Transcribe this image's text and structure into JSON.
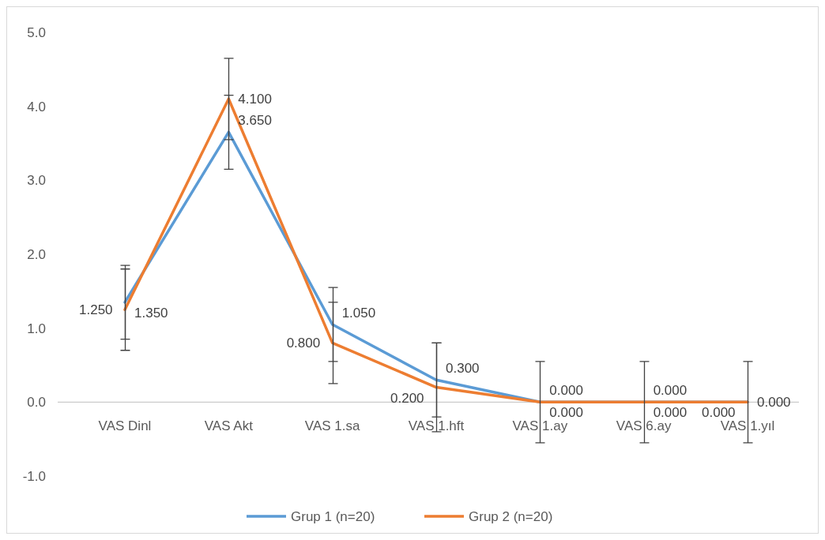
{
  "chart_data": {
    "type": "line",
    "categories": [
      "VAS Dinl",
      "VAS Akt",
      "VAS 1.sa",
      "VAS 1.hft",
      "VAS 1.ay",
      "VAS 6.ay",
      "VAS 1.yıl"
    ],
    "series": [
      {
        "name": "Grup 1 (n=20)",
        "color": "#5b9bd5",
        "values": [
          1.35,
          3.65,
          1.05,
          0.3,
          0,
          0,
          0
        ],
        "errors": [
          0.5,
          0.5,
          0.5,
          0.5,
          0.55,
          0.55,
          0.55
        ],
        "value_labels": [
          "1.350",
          "3.650",
          "1.050",
          "0.300",
          "0.000",
          "0.000",
          "0.000"
        ]
      },
      {
        "name": "Grup 2 (n=20)",
        "color": "#ed7d31",
        "values": [
          1.25,
          4.1,
          0.8,
          0.2,
          0,
          0,
          0
        ],
        "errors": [
          0.55,
          0.55,
          0.55,
          0.6,
          0.55,
          0.55,
          0.55
        ],
        "value_labels": [
          "1.250",
          "4.100",
          "0.800",
          "0.200",
          "0.000",
          "0.000",
          "0.000"
        ]
      }
    ],
    "ylim": [
      -1,
      5
    ],
    "yticks": [
      {
        "value": -1,
        "label": "-1.0"
      },
      {
        "value": 0,
        "label": "0.0"
      },
      {
        "value": 1,
        "label": "1.0"
      },
      {
        "value": 2,
        "label": "2.0"
      },
      {
        "value": 3,
        "label": "3.0"
      },
      {
        "value": 4,
        "label": "4.0"
      },
      {
        "value": 5,
        "label": "5.0"
      }
    ],
    "legend": "bottom",
    "marker": "none",
    "line_style": "solid"
  }
}
